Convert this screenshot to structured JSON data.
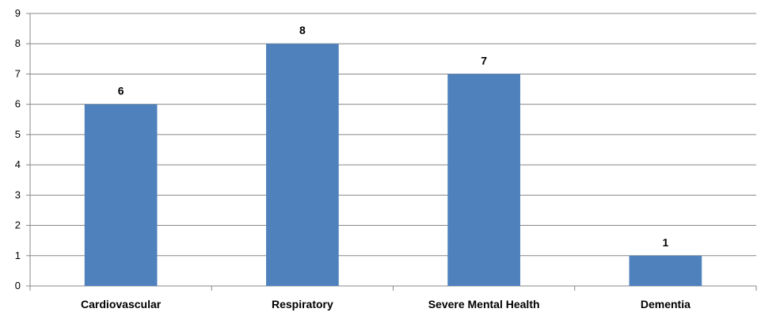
{
  "chart_data": {
    "type": "bar",
    "title": "",
    "xlabel": "",
    "ylabel": "",
    "categories": [
      "Cardiovascular",
      "Respiratory",
      "Severe Mental Health",
      "Dementia"
    ],
    "values": [
      6,
      8,
      7,
      1
    ],
    "data_labels": [
      "6",
      "8",
      "7",
      "1"
    ],
    "ylim": [
      0,
      9
    ],
    "yticks": [
      0,
      1,
      2,
      3,
      4,
      5,
      6,
      7,
      8,
      9
    ],
    "grid": true,
    "legend": "none",
    "colors": {
      "bar": "#4f81bd",
      "grid": "#888888",
      "axis": "#888888"
    }
  }
}
